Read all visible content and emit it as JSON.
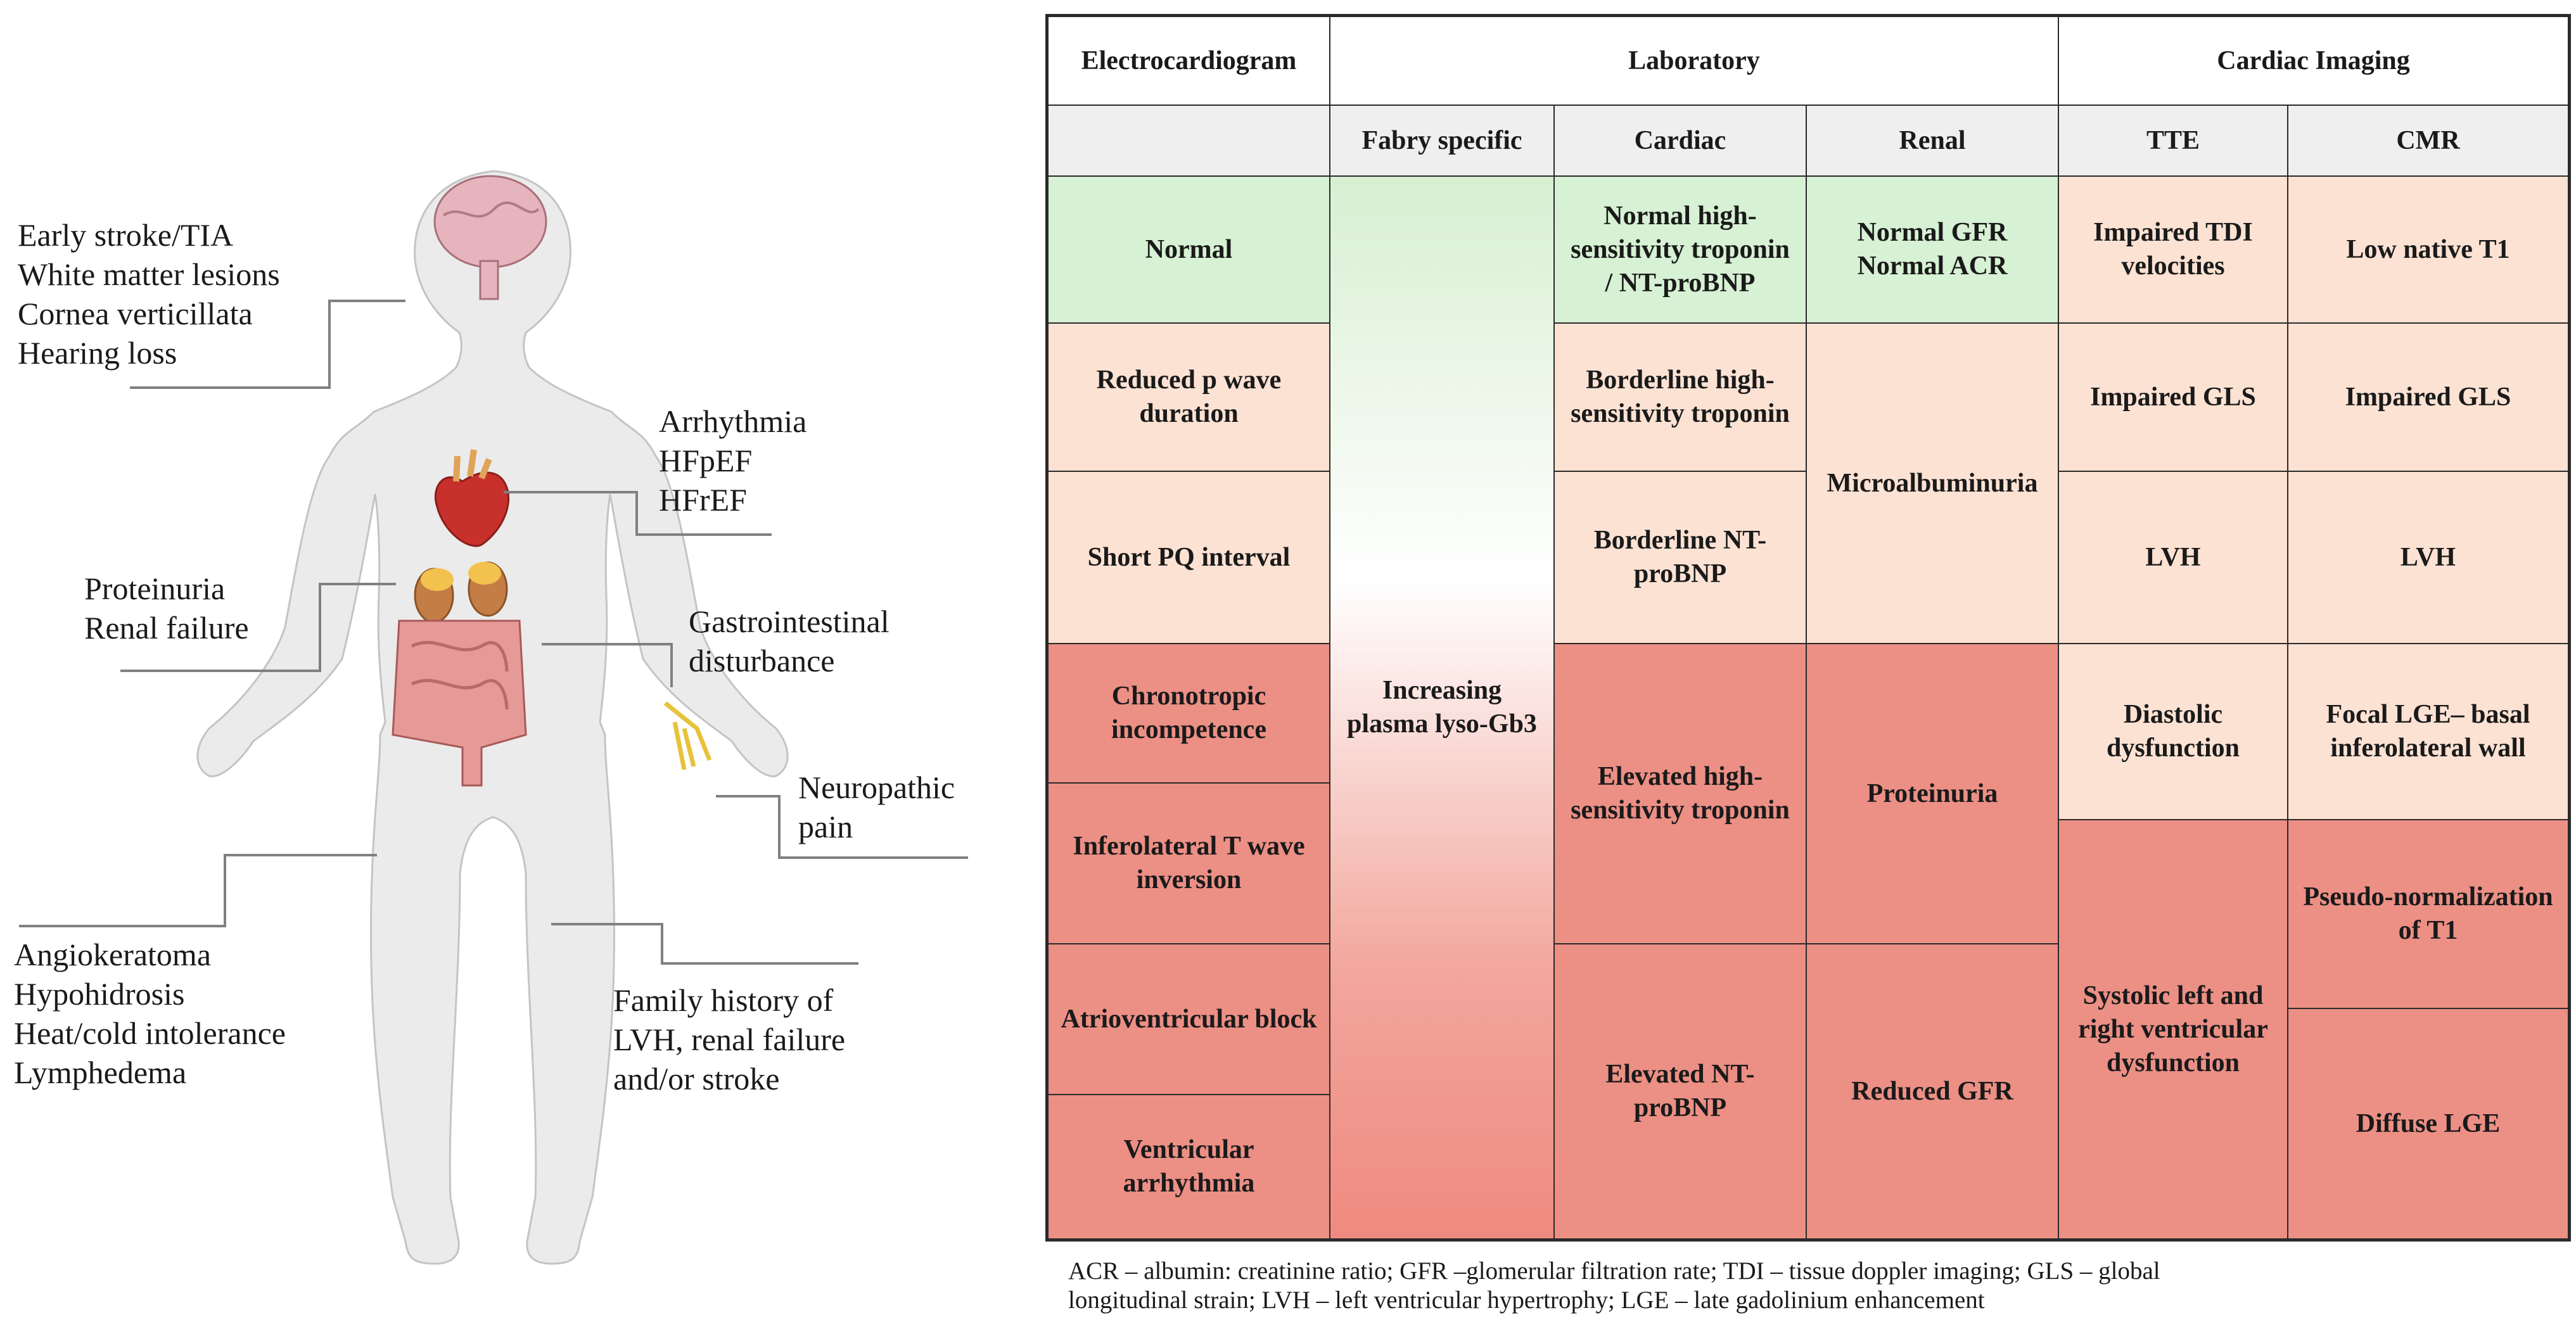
{
  "callouts": {
    "brain": [
      "Early stroke/TIA",
      "White matter lesions",
      "Cornea verticillata",
      "Hearing loss"
    ],
    "heart": [
      "Arrhythmia",
      "HFpEF",
      "HFrEF"
    ],
    "kidney": [
      "Proteinuria",
      "Renal failure"
    ],
    "gut": [
      "Gastrointestinal",
      "disturbance"
    ],
    "nerve": [
      "Neuropathic",
      "pain"
    ],
    "skin": [
      "Angiokeratoma",
      "Hypohidrosis",
      "Heat/cold intolerance",
      "Lymphedema"
    ],
    "family": [
      "Family history of",
      "LVH, renal failure",
      "and/or stroke"
    ]
  },
  "colors": {
    "normal": "#d6f1d3",
    "borderline": "#fce2d3",
    "abnormal": "#ec8f85",
    "leader": "#808080",
    "body": "#ebebeb"
  },
  "table": {
    "groups": {
      "ecg": "Electrocardiogram",
      "lab": "Laboratory",
      "imaging": "Cardiac Imaging"
    },
    "subheaders": {
      "fabry": "Fabry specific",
      "cardiac": "Cardiac",
      "renal": "Renal",
      "tte": "TTE",
      "cmr": "CMR"
    },
    "ecg": [
      "Normal",
      "Reduced p wave duration",
      "Short PQ interval",
      "Chronotropic incompetence",
      "Inferolateral T wave inversion",
      "Atrioventricular block",
      "Ventricular arrhythmia"
    ],
    "fabry": "Increasing plasma lyso-Gb3",
    "cardiac": [
      "Normal high-sensitivity troponin / NT-proBNP",
      "Borderline high-sensitivity troponin",
      "Borderline NT-proBNP",
      "Elevated high-sensitivity troponin",
      "Elevated NT-proBNP"
    ],
    "renal": [
      "Normal GFR Normal ACR",
      "Microalbuminuria",
      "Proteinuria",
      "Reduced GFR"
    ],
    "tte": [
      "Impaired TDI velocities",
      "Impaired GLS",
      "LVH",
      "Diastolic dysfunction",
      "Systolic left and right ventricular dysfunction"
    ],
    "cmr": [
      "Low native T1",
      "Impaired GLS",
      "LVH",
      "Focal LGE– basal inferolateral wall",
      "Pseudo-normalization of T1",
      "Diffuse LGE"
    ]
  },
  "footnote": [
    "ACR – albumin: creatinine ratio; GFR –glomerular filtration rate; TDI – tissue doppler imaging; GLS – global",
    "longitudinal strain; LVH – left ventricular hypertrophy; LGE – late gadolinium enhancement"
  ]
}
